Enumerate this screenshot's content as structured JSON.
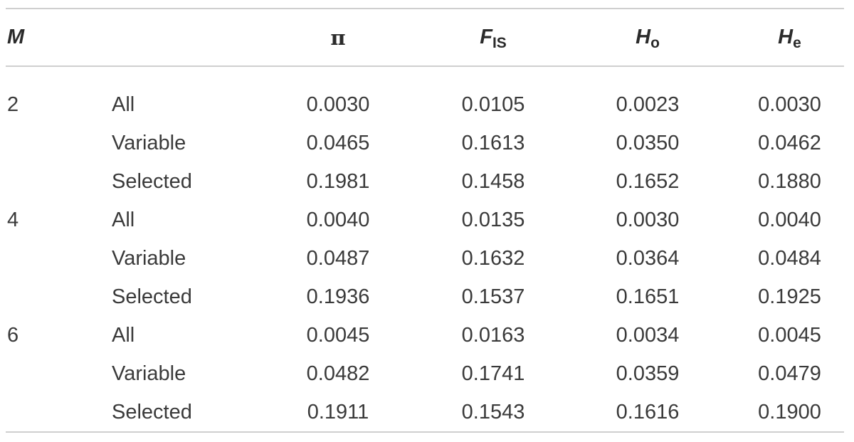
{
  "table": {
    "headers": {
      "m": "M",
      "pi": "π",
      "fis_main": "F",
      "fis_sub": "IS",
      "ho_main": "H",
      "ho_sub": "o",
      "he_main": "H",
      "he_sub": "e"
    },
    "rows": [
      {
        "m": "2",
        "subset": "All",
        "pi": "0.0030",
        "fis": "0.0105",
        "ho": "0.0023",
        "he": "0.0030"
      },
      {
        "m": "",
        "subset": "Variable",
        "pi": "0.0465",
        "fis": "0.1613",
        "ho": "0.0350",
        "he": "0.0462"
      },
      {
        "m": "",
        "subset": "Selected",
        "pi": "0.1981",
        "fis": "0.1458",
        "ho": "0.1652",
        "he": "0.1880"
      },
      {
        "m": "4",
        "subset": "All",
        "pi": "0.0040",
        "fis": "0.0135",
        "ho": "0.0030",
        "he": "0.0040"
      },
      {
        "m": "",
        "subset": "Variable",
        "pi": "0.0487",
        "fis": "0.1632",
        "ho": "0.0364",
        "he": "0.0484"
      },
      {
        "m": "",
        "subset": "Selected",
        "pi": "0.1936",
        "fis": "0.1537",
        "ho": "0.1651",
        "he": "0.1925"
      },
      {
        "m": "6",
        "subset": "All",
        "pi": "0.0045",
        "fis": "0.0163",
        "ho": "0.0034",
        "he": "0.0045"
      },
      {
        "m": "",
        "subset": "Variable",
        "pi": "0.0482",
        "fis": "0.1741",
        "ho": "0.0359",
        "he": "0.0479"
      },
      {
        "m": "",
        "subset": "Selected",
        "pi": "0.1911",
        "fis": "0.1543",
        "ho": "0.1616",
        "he": "0.1900"
      }
    ]
  }
}
